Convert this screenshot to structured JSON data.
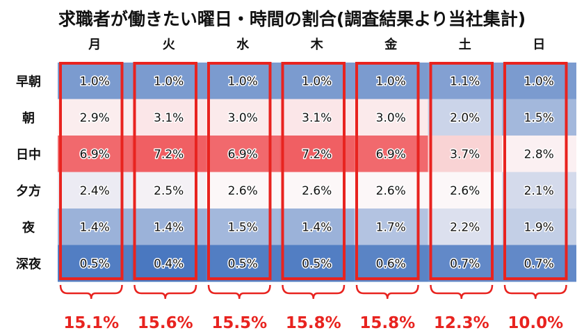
{
  "chart_data": {
    "type": "heatmap",
    "title": "求職者が働きたい曜日・時間の割合(調査結果より当社集計)",
    "columns": [
      "月",
      "火",
      "水",
      "木",
      "金",
      "土",
      "日"
    ],
    "rows": [
      "早朝",
      "朝",
      "日中",
      "夕方",
      "夜",
      "深夜"
    ],
    "values": [
      [
        1.0,
        1.0,
        1.0,
        1.0,
        1.0,
        1.1,
        1.0
      ],
      [
        2.9,
        3.1,
        3.0,
        3.1,
        3.0,
        2.0,
        1.5
      ],
      [
        6.9,
        7.2,
        6.9,
        7.2,
        6.9,
        3.7,
        2.8
      ],
      [
        2.4,
        2.5,
        2.6,
        2.6,
        2.6,
        2.6,
        2.1
      ],
      [
        1.4,
        1.4,
        1.5,
        1.4,
        1.7,
        2.2,
        1.9
      ],
      [
        0.5,
        0.4,
        0.5,
        0.5,
        0.6,
        0.7,
        0.7
      ]
    ],
    "value_labels": [
      [
        "1.0%",
        "1.0%",
        "1.0%",
        "1.0%",
        "1.0%",
        "1.1%",
        "1.0%"
      ],
      [
        "2.9%",
        "3.1%",
        "3.0%",
        "3.1%",
        "3.0%",
        "2.0%",
        "1.5%"
      ],
      [
        "6.9%",
        "7.2%",
        "6.9%",
        "7.2%",
        "6.9%",
        "3.7%",
        "2.8%"
      ],
      [
        "2.4%",
        "2.5%",
        "2.6%",
        "2.6%",
        "2.6%",
        "2.6%",
        "2.1%"
      ],
      [
        "1.4%",
        "1.4%",
        "1.5%",
        "1.4%",
        "1.7%",
        "2.2%",
        "1.9%"
      ],
      [
        "0.5%",
        "0.4%",
        "0.5%",
        "0.5%",
        "0.6%",
        "0.7%",
        "0.7%"
      ]
    ],
    "column_totals": [
      15.1,
      15.6,
      15.5,
      15.8,
      15.8,
      12.3,
      10.0
    ],
    "column_total_labels": [
      "15.1%",
      "15.6%",
      "15.5%",
      "15.8%",
      "15.8%",
      "12.3%",
      "10.0%"
    ],
    "colors": {
      "low": "#4a78c0",
      "mid": "#fcf7f8",
      "high": "#f05f63",
      "highlight": "#e8231f"
    },
    "highlight": "each weekday column outlined in red with a brace and its total below"
  }
}
